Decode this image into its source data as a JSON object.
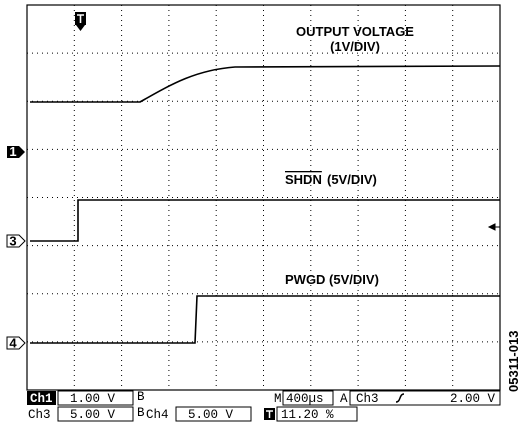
{
  "annotations": {
    "output_voltage": "OUTPUT VOLTAGE",
    "output_scale": "(1V/DIV)",
    "shdn": "SHDN",
    "shdn_scale": "(5V/DIV)",
    "pwgd": "PWGD (5V/DIV)"
  },
  "markers": {
    "ch1": "1",
    "ch3": "3",
    "ch4": "4"
  },
  "status": {
    "ch1_label": "Ch1",
    "ch1_scale": "1.00 V",
    "time_prefix": "M",
    "time_scale": "400µs",
    "trigger_mode": "A",
    "trigger_source": "Ch3",
    "trigger_level": "2.00 V",
    "ch3_label": "Ch3",
    "ch3_scale": "5.00 V",
    "ch4_label": "Ch4",
    "ch4_scale": "5.00 V",
    "trigger_position": "11.20 %"
  },
  "figure_id": "05311-013"
}
